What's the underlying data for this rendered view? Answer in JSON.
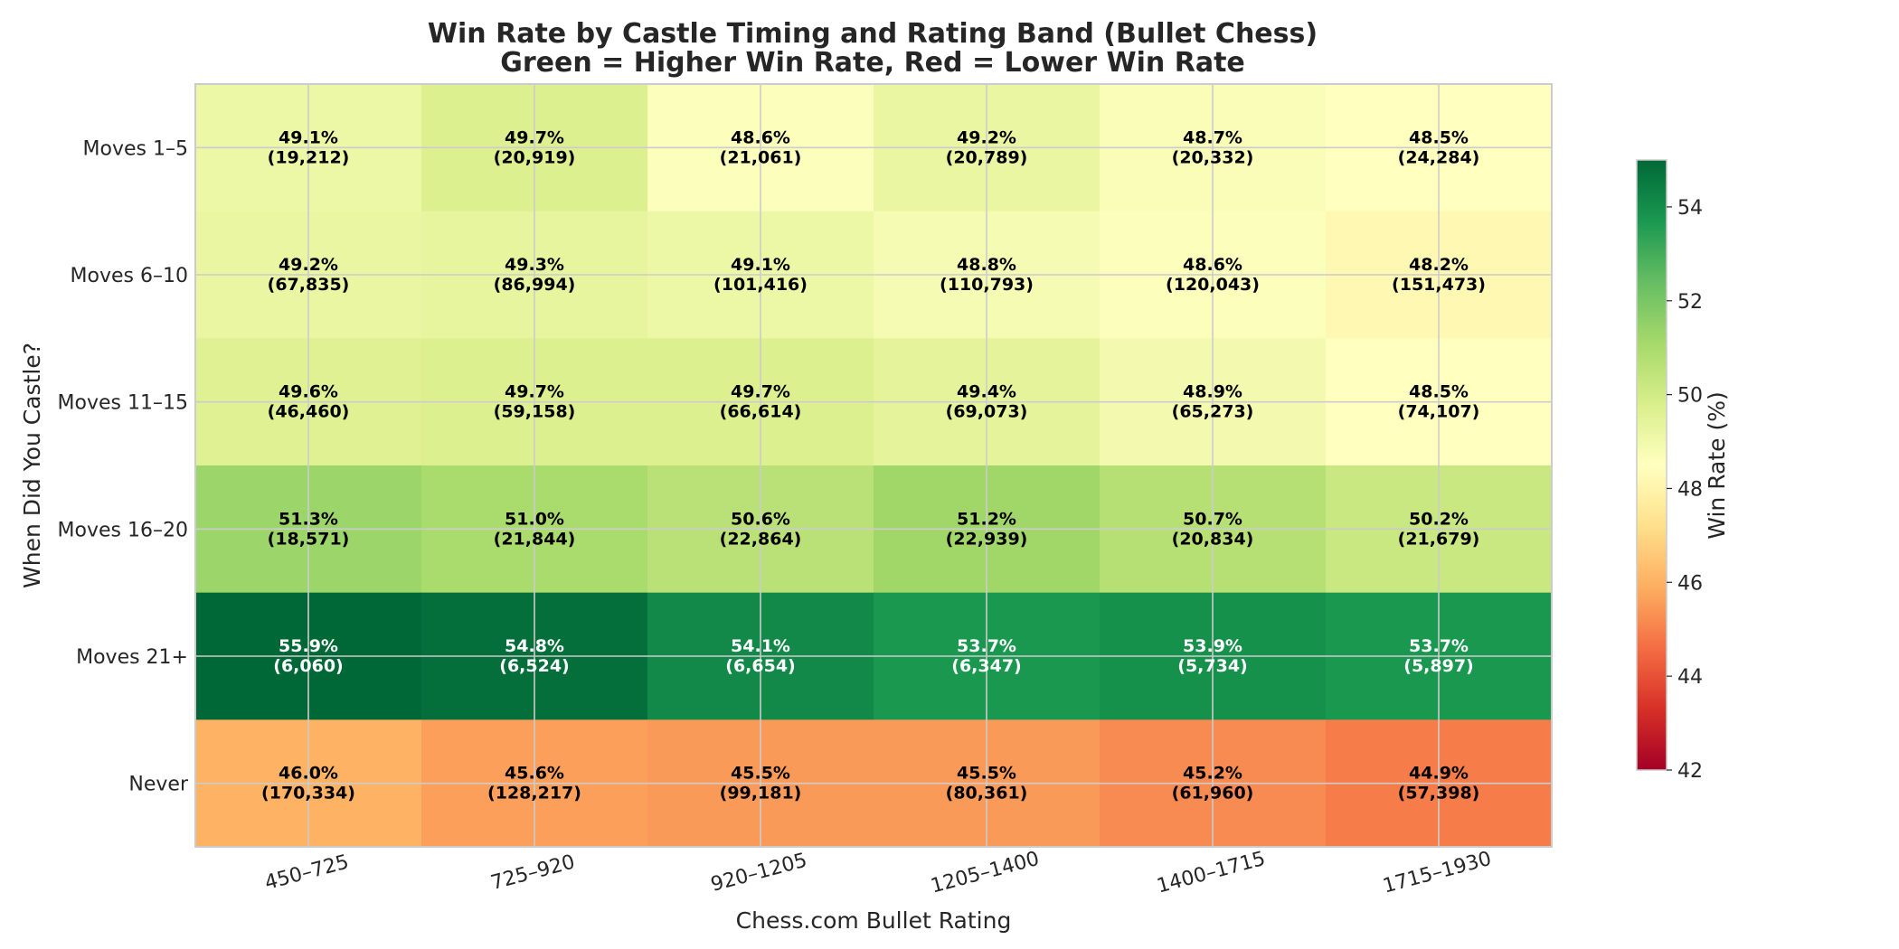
{
  "chart_data": {
    "type": "heatmap",
    "title_line1": "Win Rate by Castle Timing and Rating Band (Bullet Chess)",
    "title_line2": "Green = Higher Win Rate, Red = Lower Win Rate",
    "xlabel": "Chess.com Bullet Rating",
    "ylabel": "When Did You Castle?",
    "x_categories": [
      "450–725",
      "725–920",
      "920–1205",
      "1205–1400",
      "1400–1715",
      "1715–1930"
    ],
    "y_categories": [
      "Moves 1–5",
      "Moves 6–10",
      "Moves 11–15",
      "Moves 16–20",
      "Moves 21+",
      "Never"
    ],
    "values": [
      [
        49.1,
        49.7,
        48.6,
        49.2,
        48.7,
        48.5
      ],
      [
        49.2,
        49.3,
        49.1,
        48.8,
        48.6,
        48.2
      ],
      [
        49.6,
        49.7,
        49.7,
        49.4,
        48.9,
        48.5
      ],
      [
        51.3,
        51.0,
        50.6,
        51.2,
        50.7,
        50.2
      ],
      [
        55.9,
        54.8,
        54.1,
        53.7,
        53.9,
        53.7
      ],
      [
        46.0,
        45.6,
        45.5,
        45.5,
        45.2,
        44.9
      ]
    ],
    "value_labels": [
      [
        "49.1%",
        "49.7%",
        "48.6%",
        "49.2%",
        "48.7%",
        "48.5%"
      ],
      [
        "49.2%",
        "49.3%",
        "49.1%",
        "48.8%",
        "48.6%",
        "48.2%"
      ],
      [
        "49.6%",
        "49.7%",
        "49.7%",
        "49.4%",
        "48.9%",
        "48.5%"
      ],
      [
        "51.3%",
        "51.0%",
        "50.6%",
        "51.2%",
        "50.7%",
        "50.2%"
      ],
      [
        "55.9%",
        "54.8%",
        "54.1%",
        "53.7%",
        "53.9%",
        "53.7%"
      ],
      [
        "46.0%",
        "45.6%",
        "45.5%",
        "45.5%",
        "45.2%",
        "44.9%"
      ]
    ],
    "counts": [
      [
        "(19,212)",
        "(20,919)",
        "(21,061)",
        "(20,789)",
        "(20,332)",
        "(24,284)"
      ],
      [
        "(67,835)",
        "(86,994)",
        "(101,416)",
        "(110,793)",
        "(120,043)",
        "(151,473)"
      ],
      [
        "(46,460)",
        "(59,158)",
        "(66,614)",
        "(69,073)",
        "(65,273)",
        "(74,107)"
      ],
      [
        "(18,571)",
        "(21,844)",
        "(22,864)",
        "(22,939)",
        "(20,834)",
        "(21,679)"
      ],
      [
        "(6,060)",
        "(6,524)",
        "(6,654)",
        "(6,347)",
        "(5,734)",
        "(5,897)"
      ],
      [
        "(170,334)",
        "(128,217)",
        "(99,181)",
        "(80,361)",
        "(61,960)",
        "(57,398)"
      ]
    ],
    "colormap": "RdYlGn",
    "vmin": 42,
    "vmax": 55,
    "colorbar": {
      "label": "Win Rate (%)",
      "ticks": [
        42,
        44,
        46,
        48,
        50,
        52,
        54
      ],
      "tick_labels": [
        "42",
        "44",
        "46",
        "48",
        "50",
        "52",
        "54"
      ],
      "position": "right"
    },
    "grid": true,
    "text_color_dark": "#000000",
    "text_color_light": "#ffffff"
  }
}
